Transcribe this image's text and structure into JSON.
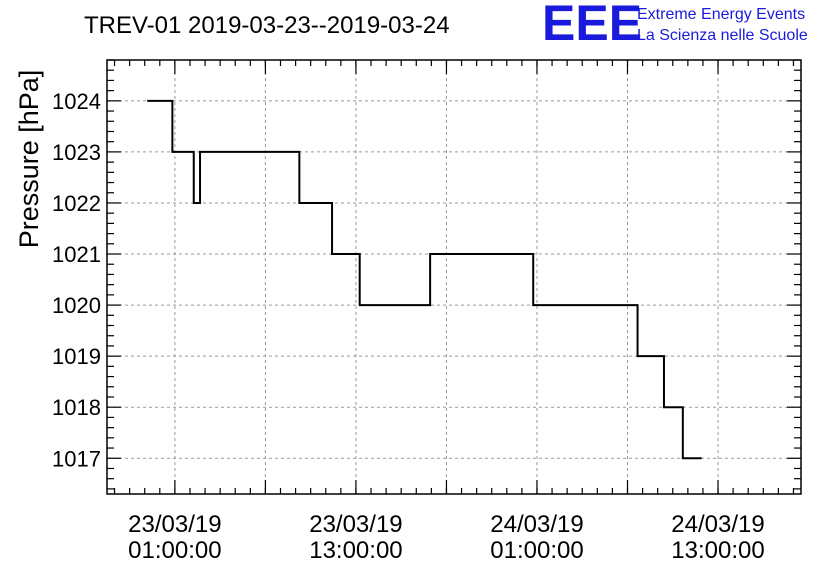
{
  "colors": {
    "line": "#000000",
    "grid": "#999999",
    "logo": "#1a1adc"
  },
  "logo": {
    "mark": "EEE",
    "line1": "Extreme Energy Events",
    "line2": "La Scienza nelle Scuole"
  },
  "chart_data": {
    "type": "line",
    "step": true,
    "title": "TREV-01 2019-03-23--2019-03-24",
    "ylabel": "Pressure [hPa]",
    "xlabel": "",
    "grid": true,
    "ylim": [
      1016.3,
      1024.8
    ],
    "xlim": [
      "2019-03-22T20:30:00",
      "2019-03-24T18:30:00"
    ],
    "yticks": [
      1017,
      1018,
      1019,
      1020,
      1021,
      1022,
      1023,
      1024
    ],
    "xticks": [
      {
        "t": "2019-03-23T01:00:00",
        "line1": "23/03/19",
        "line2": "01:00:00"
      },
      {
        "t": "2019-03-23T13:00:00",
        "line1": "23/03/19",
        "line2": "13:00:00"
      },
      {
        "t": "2019-03-24T01:00:00",
        "line1": "24/03/19",
        "line2": "01:00:00"
      },
      {
        "t": "2019-03-24T13:00:00",
        "line1": "24/03/19",
        "line2": "13:00:00"
      }
    ],
    "series": [
      {
        "points": [
          [
            "2019-03-22T23:10:00",
            1024
          ],
          [
            "2019-03-23T00:50:00",
            1023
          ],
          [
            "2019-03-23T02:15:00",
            1022
          ],
          [
            "2019-03-23T02:40:00",
            1023
          ],
          [
            "2019-03-23T09:15:00",
            1022
          ],
          [
            "2019-03-23T11:25:00",
            1021
          ],
          [
            "2019-03-23T13:15:00",
            1020
          ],
          [
            "2019-03-23T17:55:00",
            1021
          ],
          [
            "2019-03-24T00:45:00",
            1020
          ],
          [
            "2019-03-24T07:40:00",
            1019
          ],
          [
            "2019-03-24T09:25:00",
            1018
          ],
          [
            "2019-03-24T10:40:00",
            1017
          ],
          [
            "2019-03-24T11:55:00",
            1017
          ]
        ]
      }
    ]
  }
}
